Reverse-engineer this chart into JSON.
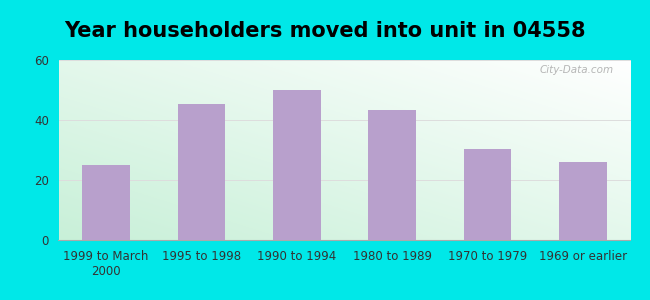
{
  "title": "Year householders moved into unit in 04558",
  "categories": [
    "1999 to March\n2000",
    "1995 to 1998",
    "1990 to 1994",
    "1980 to 1989",
    "1970 to 1979",
    "1969 or earlier"
  ],
  "values": [
    25,
    45.5,
    50,
    43.5,
    30.5,
    26
  ],
  "bar_color": "#b8a0cc",
  "background_outer": "#00e8e8",
  "ylim": [
    0,
    60
  ],
  "yticks": [
    0,
    20,
    40,
    60
  ],
  "title_fontsize": 15,
  "tick_fontsize": 8.5,
  "watermark": "City-Data.com",
  "gradient_colors": [
    "#c8f0d8",
    "#ffffff"
  ],
  "grid_color": "#dddddd"
}
